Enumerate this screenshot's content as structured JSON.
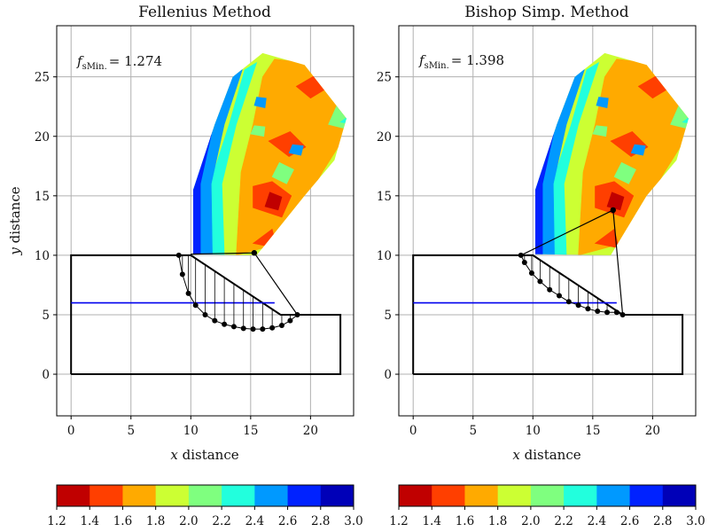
{
  "figure": {
    "xlabel_var": "x",
    "ylabel_var": "y",
    "label_suffix": "distance",
    "colorbar_colors": [
      "#c00000",
      "#ff3f00",
      "#ffaa00",
      "#ccff33",
      "#7fff7f",
      "#22ffdd",
      "#0099ff",
      "#0022ff",
      "#0000b8"
    ]
  },
  "chart_data": [
    {
      "type": "contour",
      "title": "Fellenius Method",
      "annotation": {
        "symbol": "f",
        "subscript": "sMin.",
        "value": "= 1.274"
      },
      "xlabel": "x distance",
      "ylabel": "y distance",
      "xlim": [
        -1.2,
        23.6
      ],
      "ylim": [
        -3.5,
        29.3
      ],
      "xticks": [
        0,
        5,
        10,
        15,
        20
      ],
      "yticks": [
        0,
        5,
        10,
        15,
        20,
        25
      ],
      "slope_outline": [
        [
          0,
          0
        ],
        [
          0,
          10
        ],
        [
          10,
          10
        ],
        [
          17.5,
          5
        ],
        [
          22.5,
          5
        ],
        [
          22.5,
          0
        ],
        [
          0,
          0
        ]
      ],
      "water_table": {
        "x": [
          0,
          17
        ],
        "y": [
          6,
          6
        ]
      },
      "grid_region": [
        [
          10.2,
          10.1
        ],
        [
          10.2,
          15.5
        ],
        [
          12,
          21
        ],
        [
          13.5,
          25
        ],
        [
          16,
          27
        ],
        [
          19.5,
          26
        ],
        [
          23,
          21.5
        ],
        [
          22,
          18
        ],
        [
          19.5,
          15
        ],
        [
          15.5,
          10
        ],
        [
          10.2,
          10.1
        ]
      ],
      "slip_surface": [
        [
          9.0,
          10.0
        ],
        [
          9.3,
          8.4
        ],
        [
          9.8,
          6.8
        ],
        [
          10.4,
          5.8
        ],
        [
          11.2,
          5.0
        ],
        [
          12.0,
          4.5
        ],
        [
          12.8,
          4.2
        ],
        [
          13.6,
          4.0
        ],
        [
          14.4,
          3.85
        ],
        [
          15.2,
          3.8
        ],
        [
          16.0,
          3.8
        ],
        [
          16.8,
          3.9
        ],
        [
          17.6,
          4.1
        ],
        [
          18.3,
          4.5
        ],
        [
          18.9,
          5.0
        ]
      ],
      "critical_center": [
        15.3,
        10.2
      ],
      "radius_lines": [
        [
          [
            10,
            10.1
          ],
          [
            15.3,
            10.2
          ],
          [
            18.9,
            5.0
          ]
        ]
      ],
      "colorbar": {
        "ticks": [
          "1.2",
          "1.4",
          "1.6",
          "1.8",
          "2.0",
          "2.2",
          "2.4",
          "2.6",
          "2.8",
          "3.0"
        ]
      }
    },
    {
      "type": "contour",
      "title": "Bishop Simp. Method",
      "annotation": {
        "symbol": "f",
        "subscript": "sMin.",
        "value": "= 1.398"
      },
      "xlabel": "x distance",
      "ylabel": "",
      "xlim": [
        -1.2,
        23.6
      ],
      "ylim": [
        -3.5,
        29.3
      ],
      "xticks": [
        0,
        5,
        10,
        15,
        20
      ],
      "yticks": [
        0,
        5,
        10,
        15,
        20,
        25
      ],
      "slope_outline": [
        [
          0,
          0
        ],
        [
          0,
          10
        ],
        [
          10,
          10
        ],
        [
          17.5,
          5
        ],
        [
          22.5,
          5
        ],
        [
          22.5,
          0
        ],
        [
          0,
          0
        ]
      ],
      "water_table": {
        "x": [
          0,
          17
        ],
        "y": [
          6,
          6
        ]
      },
      "grid_region": [
        [
          10.2,
          10.1
        ],
        [
          10.2,
          15.5
        ],
        [
          12,
          21
        ],
        [
          13.5,
          25
        ],
        [
          16,
          27
        ],
        [
          19.5,
          26
        ],
        [
          23,
          21.5
        ],
        [
          22,
          18
        ],
        [
          19.5,
          15
        ],
        [
          16.5,
          10
        ],
        [
          10.2,
          10.1
        ]
      ],
      "slip_surface": [
        [
          9.0,
          10.0
        ],
        [
          9.3,
          9.4
        ],
        [
          9.9,
          8.5
        ],
        [
          10.6,
          7.8
        ],
        [
          11.4,
          7.1
        ],
        [
          12.2,
          6.6
        ],
        [
          13.0,
          6.1
        ],
        [
          13.8,
          5.8
        ],
        [
          14.6,
          5.5
        ],
        [
          15.4,
          5.3
        ],
        [
          16.2,
          5.2
        ],
        [
          17.0,
          5.2
        ],
        [
          17.5,
          5.0
        ]
      ],
      "critical_center": [
        16.7,
        13.8
      ],
      "radius_lines": [
        [
          [
            9.0,
            10.0
          ],
          [
            16.7,
            13.8
          ],
          [
            17.5,
            5.0
          ]
        ]
      ],
      "colorbar": {
        "ticks": [
          "1.2",
          "1.4",
          "1.6",
          "1.8",
          "2.0",
          "2.2",
          "2.4",
          "2.6",
          "2.8",
          "3.0"
        ]
      }
    }
  ]
}
